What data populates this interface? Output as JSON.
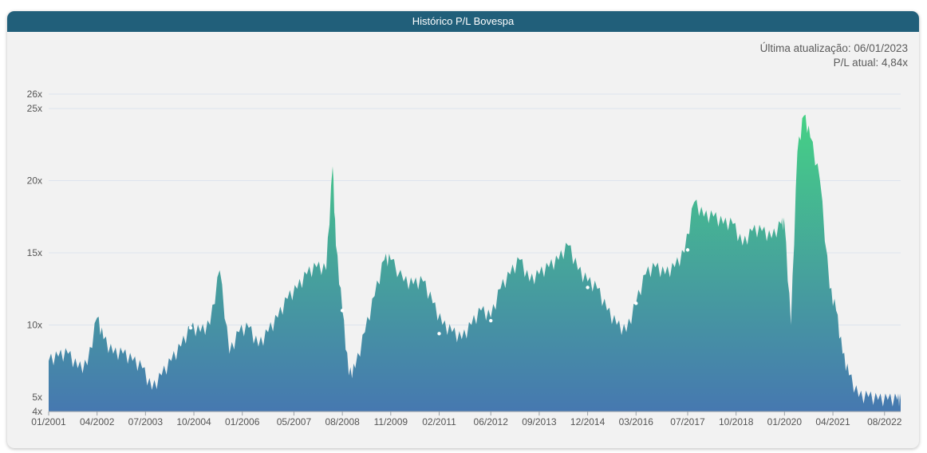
{
  "header": {
    "title": "Histórico P/L Bovespa"
  },
  "meta": {
    "last_update": "Última atualização: 06/01/2023",
    "current_pl": "P/L atual: 4,84x"
  },
  "colors": {
    "header_bg": "#215f7a",
    "area_top": "#45d185",
    "area_bottom": "#4678b0",
    "grid": "#dde4ee",
    "marker": "#ffffff"
  },
  "chart_data": {
    "type": "area",
    "title": "Histórico P/L Bovespa",
    "xlabel": "",
    "ylabel": "",
    "ylim": [
      4,
      26
    ],
    "xlim": [
      "2001-01",
      "2023-01"
    ],
    "grid": true,
    "legend": "none",
    "y_ticks": [
      {
        "value": 4,
        "label": "4x"
      },
      {
        "value": 5,
        "label": "5x"
      },
      {
        "value": 10,
        "label": "10x"
      },
      {
        "value": 15,
        "label": "15x"
      },
      {
        "value": 20,
        "label": "20x"
      },
      {
        "value": 25,
        "label": "25x"
      },
      {
        "value": 26,
        "label": "26x"
      }
    ],
    "x_ticks": [
      "01/2001",
      "04/2002",
      "07/2003",
      "10/2004",
      "01/2006",
      "05/2007",
      "08/2008",
      "11/2009",
      "02/2011",
      "06/2012",
      "09/2013",
      "12/2014",
      "03/2016",
      "07/2017",
      "10/2018",
      "01/2020",
      "04/2021",
      "08/2022"
    ],
    "x": [
      "2001-01",
      "2001-04",
      "2001-07",
      "2001-10",
      "2002-01",
      "2002-04",
      "2002-06",
      "2002-09",
      "2002-12",
      "2003-03",
      "2003-06",
      "2003-09",
      "2003-12",
      "2004-03",
      "2004-06",
      "2004-09",
      "2004-12",
      "2005-03",
      "2005-06",
      "2005-09",
      "2005-12",
      "2006-03",
      "2006-06",
      "2006-09",
      "2006-12",
      "2007-03",
      "2007-06",
      "2007-09",
      "2007-12",
      "2008-03",
      "2008-05",
      "2008-06",
      "2008-08",
      "2008-10",
      "2008-12",
      "2009-03",
      "2009-06",
      "2009-09",
      "2009-11",
      "2010-03",
      "2010-06",
      "2010-09",
      "2010-12",
      "2011-03",
      "2011-06",
      "2011-09",
      "2011-12",
      "2012-03",
      "2012-06",
      "2012-09",
      "2012-12",
      "2013-03",
      "2013-06",
      "2013-09",
      "2013-12",
      "2014-03",
      "2014-06",
      "2014-09",
      "2014-12",
      "2015-03",
      "2015-06",
      "2015-09",
      "2015-12",
      "2016-03",
      "2016-06",
      "2016-09",
      "2016-12",
      "2017-03",
      "2017-06",
      "2017-09",
      "2017-12",
      "2018-03",
      "2018-06",
      "2018-09",
      "2018-12",
      "2019-03",
      "2019-06",
      "2019-09",
      "2019-12",
      "2020-01",
      "2020-03",
      "2020-05",
      "2020-07",
      "2020-09",
      "2020-12",
      "2021-03",
      "2021-05",
      "2021-07",
      "2021-09",
      "2021-12",
      "2022-03",
      "2022-06",
      "2022-09",
      "2022-12",
      "2023-01"
    ],
    "series": [
      {
        "values": [
          7.5,
          7.8,
          8.0,
          7.0,
          7.2,
          10.5,
          9.0,
          8.0,
          8.0,
          7.5,
          7.0,
          5.5,
          6.5,
          7.5,
          8.5,
          9.8,
          9.5,
          10.0,
          13.8,
          8.0,
          9.5,
          9.8,
          8.5,
          9.5,
          10.5,
          11.8,
          12.5,
          13.5,
          14.0,
          13.8,
          21.0,
          15.5,
          11.0,
          6.5,
          7.0,
          9.5,
          12.0,
          14.5,
          14.5,
          13.0,
          12.8,
          13.0,
          11.5,
          10.0,
          9.5,
          9.0,
          10.0,
          11.0,
          10.5,
          12.5,
          13.5,
          14.5,
          13.0,
          13.5,
          14.0,
          14.5,
          15.5,
          13.8,
          13.0,
          12.5,
          11.0,
          10.0,
          9.5,
          11.5,
          13.5,
          14.0,
          13.5,
          14.0,
          15.0,
          18.5,
          17.5,
          17.5,
          17.0,
          17.0,
          15.5,
          16.5,
          16.5,
          16.0,
          17.0,
          17.0,
          10.0,
          22.0,
          24.5,
          23.0,
          20.0,
          12.5,
          11.0,
          8.0,
          6.5,
          5.0,
          5.0,
          4.8,
          4.8,
          4.8,
          4.8
        ]
      }
    ],
    "markers": [
      {
        "x": "2004-09",
        "y": 9.8
      },
      {
        "x": "2008-08",
        "y": 11.0
      },
      {
        "x": "2011-02",
        "y": 9.4
      },
      {
        "x": "2012-06",
        "y": 10.3
      },
      {
        "x": "2014-12",
        "y": 12.6
      },
      {
        "x": "2016-03",
        "y": 11.5
      },
      {
        "x": "2017-07",
        "y": 15.2
      }
    ]
  }
}
